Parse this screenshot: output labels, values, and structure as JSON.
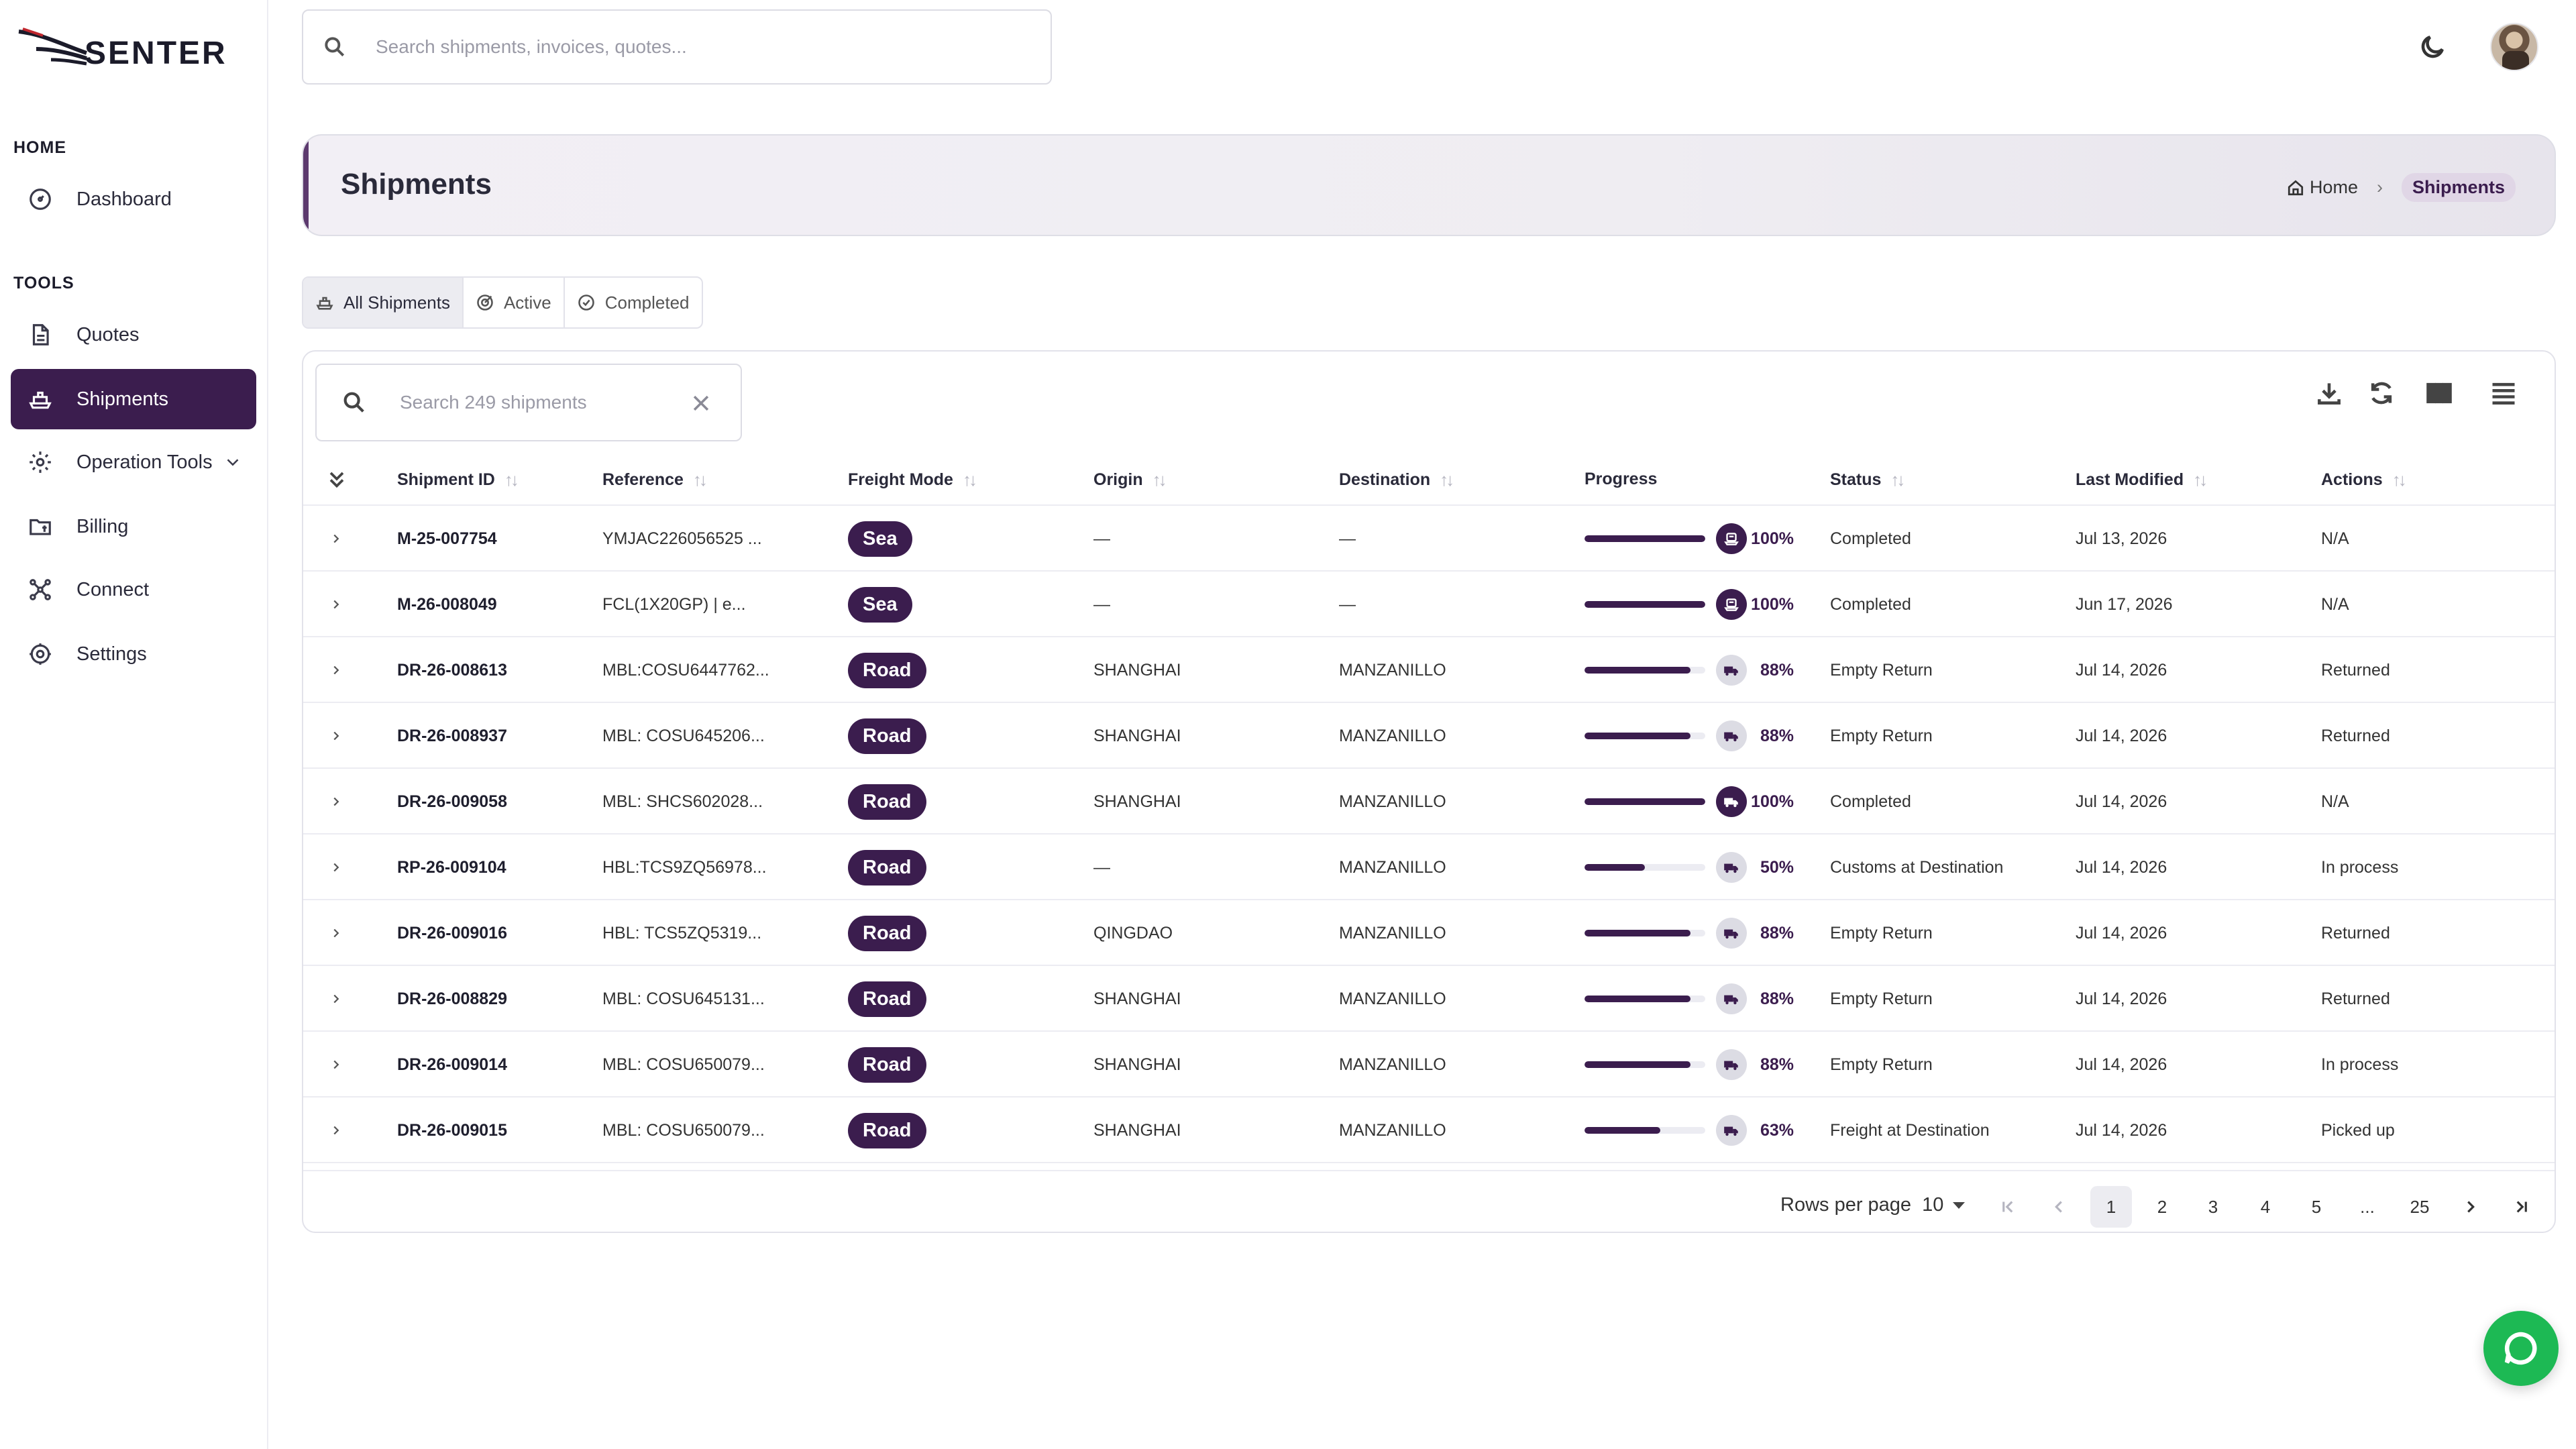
{
  "brand": {
    "name": "SENTER",
    "accent": "#3b1d4e",
    "chat_color": "#1db954"
  },
  "topbar": {
    "search_placeholder": "Search shipments, invoices, quotes..."
  },
  "sidebar": {
    "sections": [
      {
        "label": "HOME"
      },
      {
        "label": "TOOLS"
      }
    ],
    "items": [
      {
        "label": "Dashboard",
        "icon": "gauge-icon"
      },
      {
        "label": "Quotes",
        "icon": "document-icon"
      },
      {
        "label": "Shipments",
        "icon": "ship-icon",
        "active": true
      },
      {
        "label": "Operation Tools",
        "icon": "cog-icon"
      },
      {
        "label": "Billing",
        "icon": "folder-dollar-icon"
      },
      {
        "label": "Connect",
        "icon": "network-icon"
      },
      {
        "label": "Settings",
        "icon": "settings-icon"
      }
    ]
  },
  "page": {
    "title": "Shipments",
    "breadcrumb": {
      "home": "Home",
      "current": "Shipments"
    }
  },
  "tabs": [
    {
      "label": "All Shipments",
      "active": true
    },
    {
      "label": "Active"
    },
    {
      "label": "Completed"
    }
  ],
  "table": {
    "search_placeholder": "Search 249 shipments",
    "columns": [
      "Shipment ID",
      "Reference",
      "Freight Mode",
      "Origin",
      "Destination",
      "Progress",
      "Status",
      "Last Modified",
      "Actions"
    ],
    "rows": [
      {
        "id": "M-25-007754",
        "ref": "YMJAC226056525 ...",
        "mode": "Sea",
        "origin": "—",
        "dest": "—",
        "progress": 100,
        "progress_label": "100%",
        "status": "Completed",
        "modified": "Jul 13, 2026",
        "action": "N/A"
      },
      {
        "id": "M-26-008049",
        "ref": "FCL(1X20GP) | e...",
        "mode": "Sea",
        "origin": "—",
        "dest": "—",
        "progress": 100,
        "progress_label": "100%",
        "status": "Completed",
        "modified": "Jun 17, 2026",
        "action": "N/A"
      },
      {
        "id": "DR-26-008613",
        "ref": "MBL:COSU6447762...",
        "mode": "Road",
        "origin": "SHANGHAI",
        "dest": "MANZANILLO",
        "progress": 88,
        "progress_label": "88%",
        "status": "Empty Return",
        "modified": "Jul 14, 2026",
        "action": "Returned"
      },
      {
        "id": "DR-26-008937",
        "ref": "MBL: COSU645206...",
        "mode": "Road",
        "origin": "SHANGHAI",
        "dest": "MANZANILLO",
        "progress": 88,
        "progress_label": "88%",
        "status": "Empty Return",
        "modified": "Jul 14, 2026",
        "action": "Returned"
      },
      {
        "id": "DR-26-009058",
        "ref": "MBL: SHCS602028...",
        "mode": "Road",
        "origin": "SHANGHAI",
        "dest": "MANZANILLO",
        "progress": 100,
        "progress_label": "100%",
        "status": "Completed",
        "modified": "Jul 14, 2026",
        "action": "N/A"
      },
      {
        "id": "RP-26-009104",
        "ref": "HBL:TCS9ZQ56978...",
        "mode": "Road",
        "origin": "—",
        "dest": "MANZANILLO",
        "progress": 50,
        "progress_label": "50%",
        "status": "Customs at Destination",
        "modified": "Jul 14, 2026",
        "action": "In process"
      },
      {
        "id": "DR-26-009016",
        "ref": "HBL: TCS5ZQ5319...",
        "mode": "Road",
        "origin": "QINGDAO",
        "dest": "MANZANILLO",
        "progress": 88,
        "progress_label": "88%",
        "status": "Empty Return",
        "modified": "Jul 14, 2026",
        "action": "Returned"
      },
      {
        "id": "DR-26-008829",
        "ref": "MBL: COSU645131...",
        "mode": "Road",
        "origin": "SHANGHAI",
        "dest": "MANZANILLO",
        "progress": 88,
        "progress_label": "88%",
        "status": "Empty Return",
        "modified": "Jul 14, 2026",
        "action": "Returned"
      },
      {
        "id": "DR-26-009014",
        "ref": "MBL: COSU650079...",
        "mode": "Road",
        "origin": "SHANGHAI",
        "dest": "MANZANILLO",
        "progress": 88,
        "progress_label": "88%",
        "status": "Empty Return",
        "modified": "Jul 14, 2026",
        "action": "In process"
      },
      {
        "id": "DR-26-009015",
        "ref": "MBL: COSU650079...",
        "mode": "Road",
        "origin": "SHANGHAI",
        "dest": "MANZANILLO",
        "progress": 63,
        "progress_label": "63%",
        "status": "Freight at Destination",
        "modified": "Jul 14, 2026",
        "action": "Picked up"
      }
    ]
  },
  "pagination": {
    "rows_per_page_label": "Rows per page",
    "rows_per_page": "10",
    "pages": [
      "1",
      "2",
      "3",
      "4",
      "5",
      "...",
      "25"
    ],
    "current": "1"
  }
}
